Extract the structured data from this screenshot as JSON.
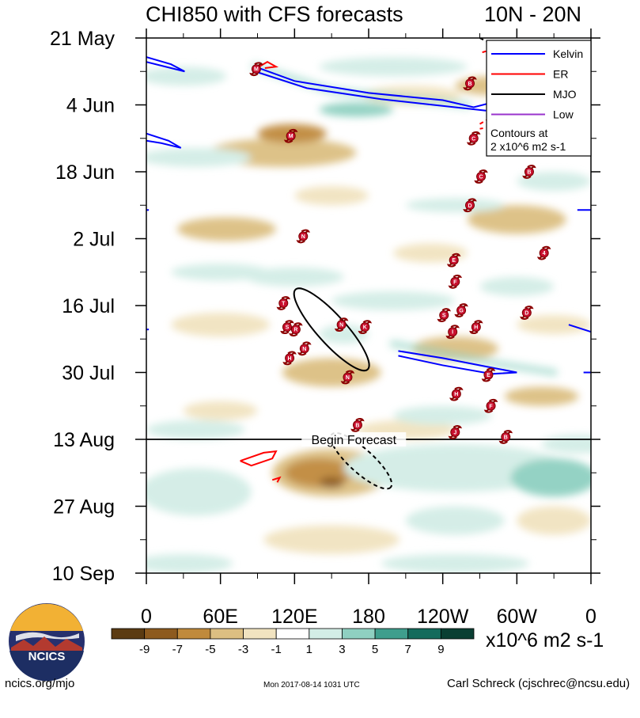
{
  "chart_data": {
    "type": "heatmap",
    "title": "CHI850 with CFS forecasts",
    "region": "10N - 20N",
    "x_ticks": [
      "0",
      "60E",
      "120E",
      "180",
      "120W",
      "60W",
      "0"
    ],
    "x_values": [
      0,
      60,
      120,
      180,
      240,
      300,
      360
    ],
    "xlim": [
      0,
      360
    ],
    "y_ticks": [
      "21 May",
      "4 Jun",
      "18 Jun",
      "2 Jul",
      "16 Jul",
      "30 Jul",
      "13 Aug",
      "27 Aug",
      "10 Sep"
    ],
    "y_days": [
      0,
      14,
      28,
      42,
      56,
      70,
      84,
      98,
      112
    ],
    "ylim_days": [
      0,
      112
    ],
    "forecast_start_day": 84,
    "forecast_label": "Begin Forecast",
    "legend": [
      {
        "label": "Kelvin",
        "color": "#0000ff"
      },
      {
        "label": "ER",
        "color": "#ff0000"
      },
      {
        "label": "MJO",
        "color": "#000000"
      },
      {
        "label": "Low",
        "color": "#9933cc"
      }
    ],
    "legend_note": [
      "Contours at",
      "2 x10^6 m2 s-1"
    ],
    "colorbar": {
      "labels": [
        "-9",
        "-7",
        "-5",
        "-3",
        "-1",
        "1",
        "3",
        "5",
        "7",
        "9"
      ],
      "colors": [
        "#5b3b12",
        "#8d5a1e",
        "#c08a3c",
        "#dcbf82",
        "#f1e3c0",
        "#ffffff",
        "#d3ede6",
        "#8fd0c1",
        "#3f9e8d",
        "#146b5c",
        "#0a3f33"
      ],
      "units": "x10^6 m2 s-1"
    },
    "storms": [
      {
        "id": "M",
        "lon": 89,
        "day": 6.5
      },
      {
        "id": "B",
        "lon": 262,
        "day": 9.5
      },
      {
        "id": "C",
        "lon": 265,
        "day": 21
      },
      {
        "id": "M",
        "lon": 117,
        "day": 20.5
      },
      {
        "id": "C",
        "lon": 271,
        "day": 29
      },
      {
        "id": "B",
        "lon": 310,
        "day": 28
      },
      {
        "id": "D",
        "lon": 262,
        "day": 35
      },
      {
        "id": "N",
        "lon": 127,
        "day": 41.5
      },
      {
        "id": "4",
        "lon": 322,
        "day": 45
      },
      {
        "id": "E",
        "lon": 249,
        "day": 46.5
      },
      {
        "id": "F",
        "lon": 250,
        "day": 51
      },
      {
        "id": "T",
        "lon": 111,
        "day": 55.5
      },
      {
        "id": "G",
        "lon": 255,
        "day": 57
      },
      {
        "id": "S",
        "lon": 241,
        "day": 58
      },
      {
        "id": "D",
        "lon": 308,
        "day": 57.5
      },
      {
        "id": "S",
        "lon": 114,
        "day": 60.5
      },
      {
        "id": "R",
        "lon": 121,
        "day": 61
      },
      {
        "id": "N",
        "lon": 158,
        "day": 60
      },
      {
        "id": "K",
        "lon": 177,
        "day": 60.5
      },
      {
        "id": "H",
        "lon": 267,
        "day": 60.5
      },
      {
        "id": "I",
        "lon": 248,
        "day": 61.5
      },
      {
        "id": "N",
        "lon": 128,
        "day": 65
      },
      {
        "id": "H",
        "lon": 116,
        "day": 67
      },
      {
        "id": "E",
        "lon": 277,
        "day": 70.5
      },
      {
        "id": "N",
        "lon": 163,
        "day": 71
      },
      {
        "id": "H",
        "lon": 251,
        "day": 74.5
      },
      {
        "id": "F",
        "lon": 279,
        "day": 77
      },
      {
        "id": "B",
        "lon": 171,
        "day": 81
      },
      {
        "id": "J",
        "lon": 250,
        "day": 82.5
      },
      {
        "id": "B",
        "lon": 291,
        "day": 83.5
      }
    ]
  },
  "footer": {
    "logo_text": "NCICS",
    "site": "ncics.org/mjo",
    "timestamp": "Mon 2017-08-14 1031 UTC",
    "author": "Carl Schreck (cjschrec@ncsu.edu)"
  }
}
